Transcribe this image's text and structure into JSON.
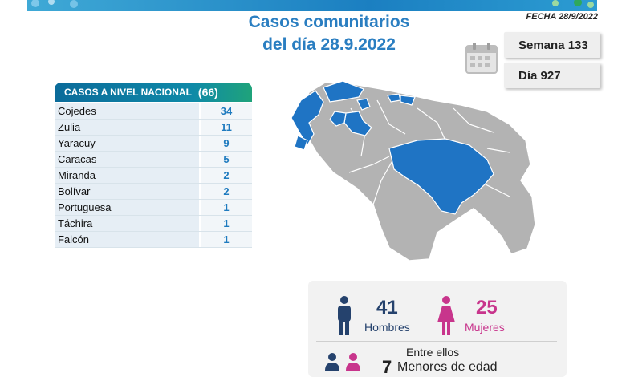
{
  "header": {
    "title_line1": "Casos comunitarios",
    "title_line2": "del día 28.9.2022",
    "date_label": "FECHA 28/9/2022"
  },
  "badges": {
    "week": "Semana 133",
    "day": "Día 927"
  },
  "table": {
    "title": "CASOS A NIVEL NACIONAL",
    "total": "(66)",
    "rows": [
      {
        "state": "Cojedes",
        "cases": "34"
      },
      {
        "state": "Zulia",
        "cases": "11"
      },
      {
        "state": "Yaracuy",
        "cases": "9"
      },
      {
        "state": "Caracas",
        "cases": "5"
      },
      {
        "state": "Miranda",
        "cases": "2"
      },
      {
        "state": "Bolívar",
        "cases": "2"
      },
      {
        "state": "Portuguesa",
        "cases": "1"
      },
      {
        "state": "Táchira",
        "cases": "1"
      },
      {
        "state": "Falcón",
        "cases": "1"
      }
    ]
  },
  "stats": {
    "men_count": "41",
    "men_label": "Hombres",
    "women_count": "25",
    "women_label": "Mujeres",
    "among_label": "Entre ellos",
    "minors_count": "7",
    "minors_label": "Menores de edad"
  },
  "colors": {
    "accent_blue": "#2a7ec1",
    "highlight_state": "#1f74c4",
    "other_state": "#b3b3b3",
    "women_pink": "#c8358c",
    "men_navy": "#25426d"
  },
  "icons": {
    "calendar": "calendar-icon",
    "man": "man-icon",
    "woman": "woman-icon",
    "children": "children-icon"
  }
}
